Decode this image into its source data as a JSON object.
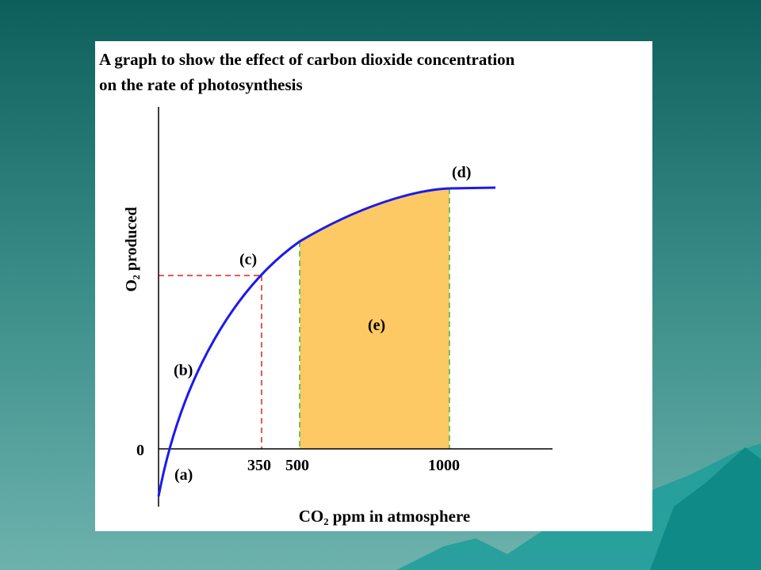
{
  "slide": {
    "title_lines": [
      "A graph to show the effect of carbon dioxide concentration",
      "on the rate  of photosynthesis"
    ],
    "y_axis_label": "O₂ produced",
    "x_axis_label": "CO₂  ppm in atmosphere",
    "y_tick": "0",
    "x_ticks": [
      "350",
      "500",
      "1000"
    ],
    "point_labels": [
      "(a)",
      "(b)",
      "(c)",
      "(d)",
      "(e)"
    ]
  }
}
